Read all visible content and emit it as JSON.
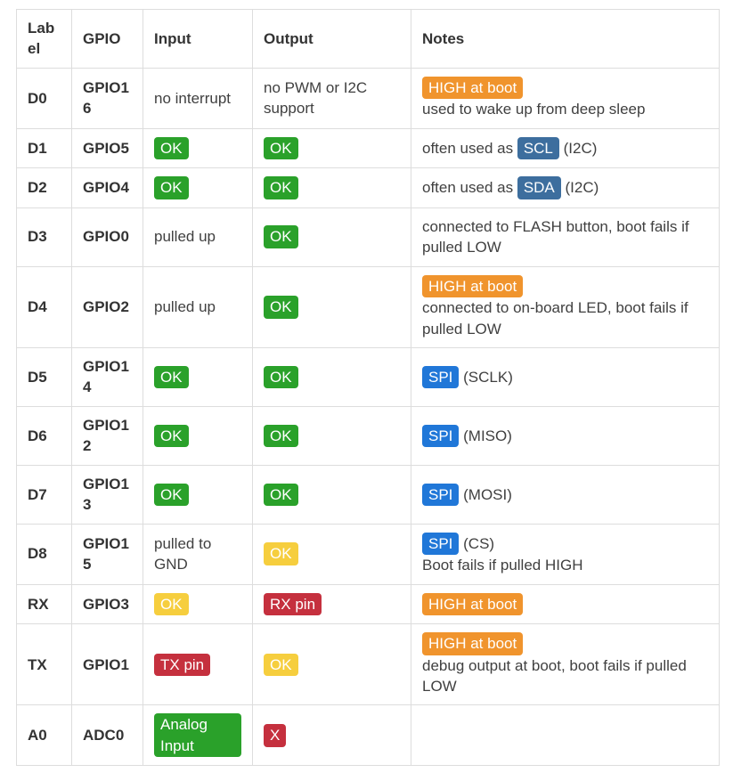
{
  "table": {
    "columns": [
      "Label",
      "GPIO",
      "Input",
      "Output",
      "Notes"
    ],
    "colors": {
      "green": "#2aa12a",
      "yellow": "#f6ce3e",
      "red": "#c5303e",
      "orange": "#f0942d",
      "steel": "#3d6e9e",
      "blue": "#2077d8"
    },
    "rows": [
      {
        "label": "D0",
        "gpio": "GPIO16",
        "input": [
          {
            "t": "no interrupt"
          }
        ],
        "output": [
          {
            "t": "no PWM or I2C support"
          }
        ],
        "notes": [
          {
            "t": "HIGH at boot",
            "b": "orange"
          },
          {
            "t": "used to wake up from deep sleep",
            "nl": true
          }
        ]
      },
      {
        "label": "D1",
        "gpio": "GPIO5",
        "input": [
          {
            "t": "OK",
            "b": "green"
          }
        ],
        "output": [
          {
            "t": "OK",
            "b": "green"
          }
        ],
        "notes": [
          {
            "t": "often used as "
          },
          {
            "t": "SCL",
            "b": "steel"
          },
          {
            "t": " (I2C)"
          }
        ]
      },
      {
        "label": "D2",
        "gpio": "GPIO4",
        "input": [
          {
            "t": "OK",
            "b": "green"
          }
        ],
        "output": [
          {
            "t": "OK",
            "b": "green"
          }
        ],
        "notes": [
          {
            "t": "often used as "
          },
          {
            "t": "SDA",
            "b": "steel"
          },
          {
            "t": " (I2C)"
          }
        ]
      },
      {
        "label": "D3",
        "gpio": "GPIO0",
        "input": [
          {
            "t": "pulled up"
          }
        ],
        "output": [
          {
            "t": "OK",
            "b": "green"
          }
        ],
        "notes": [
          {
            "t": "connected to FLASH button, boot fails if pulled LOW"
          }
        ]
      },
      {
        "label": "D4",
        "gpio": "GPIO2",
        "input": [
          {
            "t": "pulled up"
          }
        ],
        "output": [
          {
            "t": "OK",
            "b": "green"
          }
        ],
        "notes": [
          {
            "t": "HIGH at boot",
            "b": "orange"
          },
          {
            "t": "connected to on-board LED, boot fails if pulled LOW",
            "nl": true
          }
        ]
      },
      {
        "label": "D5",
        "gpio": "GPIO14",
        "input": [
          {
            "t": "OK",
            "b": "green"
          }
        ],
        "output": [
          {
            "t": "OK",
            "b": "green"
          }
        ],
        "notes": [
          {
            "t": "SPI",
            "b": "blue"
          },
          {
            "t": " (SCLK)"
          }
        ]
      },
      {
        "label": "D6",
        "gpio": "GPIO12",
        "input": [
          {
            "t": "OK",
            "b": "green"
          }
        ],
        "output": [
          {
            "t": "OK",
            "b": "green"
          }
        ],
        "notes": [
          {
            "t": "SPI",
            "b": "blue"
          },
          {
            "t": " (MISO)"
          }
        ]
      },
      {
        "label": "D7",
        "gpio": "GPIO13",
        "input": [
          {
            "t": "OK",
            "b": "green"
          }
        ],
        "output": [
          {
            "t": "OK",
            "b": "green"
          }
        ],
        "notes": [
          {
            "t": "SPI",
            "b": "blue"
          },
          {
            "t": " (MOSI)"
          }
        ]
      },
      {
        "label": "D8",
        "gpio": "GPIO15",
        "input": [
          {
            "t": "pulled to GND"
          }
        ],
        "output": [
          {
            "t": "OK",
            "b": "yellow"
          }
        ],
        "notes": [
          {
            "t": "SPI",
            "b": "blue"
          },
          {
            "t": " (CS)"
          },
          {
            "t": "Boot fails if pulled HIGH",
            "nl": true
          }
        ]
      },
      {
        "label": "RX",
        "gpio": "GPIO3",
        "input": [
          {
            "t": "OK",
            "b": "yellow"
          }
        ],
        "output": [
          {
            "t": "RX pin",
            "b": "red"
          }
        ],
        "notes": [
          {
            "t": "HIGH at boot",
            "b": "orange"
          }
        ]
      },
      {
        "label": "TX",
        "gpio": "GPIO1",
        "input": [
          {
            "t": "TX pin",
            "b": "red"
          }
        ],
        "output": [
          {
            "t": "OK",
            "b": "yellow"
          }
        ],
        "notes": [
          {
            "t": "HIGH at boot",
            "b": "orange"
          },
          {
            "t": "debug output at boot, boot fails if pulled LOW",
            "nl": true
          }
        ]
      },
      {
        "label": "A0",
        "gpio": "ADC0",
        "input": [
          {
            "t": "Analog Input",
            "b": "green"
          }
        ],
        "output": [
          {
            "t": "X",
            "b": "red"
          }
        ],
        "notes": []
      }
    ]
  }
}
